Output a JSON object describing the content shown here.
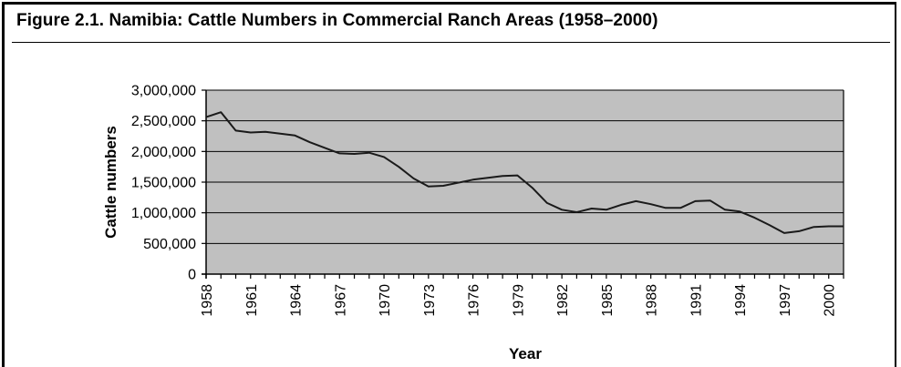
{
  "figure_title": "Figure 2.1.  Namibia: Cattle Numbers in Commercial Ranch Areas (1958–2000)",
  "chart_data": {
    "type": "line",
    "title": "Figure 2.1.  Namibia: Cattle Numbers in Commercial Ranch Areas (1958–2000)",
    "xlabel": "Year",
    "ylabel": "Cattle numbers",
    "ylim": [
      0,
      3000000
    ],
    "yticks": [
      0,
      500000,
      1000000,
      1500000,
      2000000,
      2500000,
      3000000
    ],
    "ytick_labels": [
      "0",
      "500,000",
      "1,000,000",
      "1,500,000",
      "2,000,000",
      "2,500,000",
      "3,000,000"
    ],
    "xlim": [
      1958,
      2001
    ],
    "xtick_labels": [
      "1958",
      "1961",
      "1964",
      "1967",
      "1970",
      "1973",
      "1976",
      "1979",
      "1982",
      "1985",
      "1988",
      "1991",
      "1994",
      "1997",
      "2000"
    ],
    "grid": true,
    "legend": "none",
    "colors": {
      "plot_background": "#c0c0c0",
      "line": "#1a1a1a"
    },
    "series": [
      {
        "x": [
          1958,
          1959,
          1960,
          1961,
          1962,
          1963,
          1964,
          1965,
          1966,
          1967,
          1968,
          1969,
          1970,
          1971,
          1972,
          1973,
          1974,
          1975,
          1976,
          1977,
          1978,
          1979,
          1980,
          1981,
          1982,
          1983,
          1984,
          1985,
          1986,
          1987,
          1988,
          1989,
          1990,
          1991,
          1992,
          1993,
          1994,
          1995,
          1996,
          1997,
          1998,
          1999,
          2000,
          2001
        ],
        "values": [
          2560000,
          2640000,
          2340000,
          2310000,
          2320000,
          2290000,
          2260000,
          2150000,
          2060000,
          1970000,
          1960000,
          1980000,
          1910000,
          1750000,
          1560000,
          1430000,
          1440000,
          1490000,
          1540000,
          1570000,
          1600000,
          1610000,
          1410000,
          1160000,
          1050000,
          1010000,
          1070000,
          1050000,
          1130000,
          1190000,
          1140000,
          1080000,
          1080000,
          1190000,
          1200000,
          1050000,
          1020000,
          920000,
          800000,
          670000,
          700000,
          770000,
          780000,
          780000
        ]
      }
    ]
  }
}
